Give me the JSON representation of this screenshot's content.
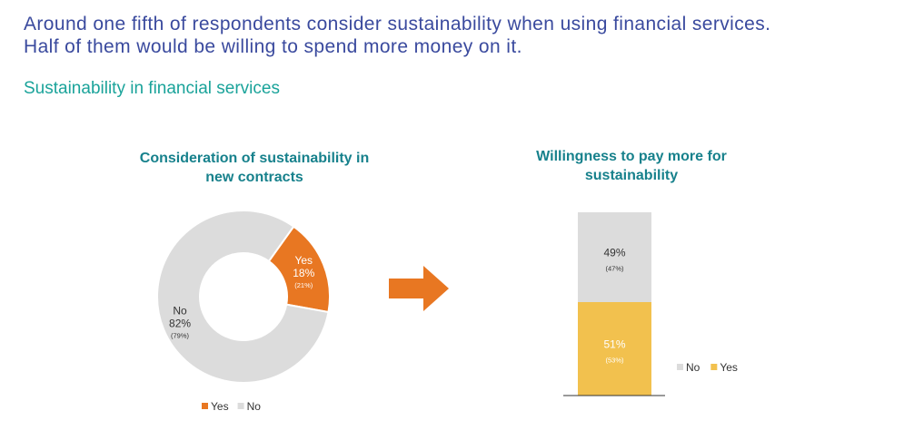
{
  "headline": {
    "line1": "Around one fifth of respondents consider sustainability when using financial services.",
    "line2": "Half of them would be willing to spend more money on it."
  },
  "subtitle": "Sustainability in financial services",
  "colors": {
    "headline": "#3a4a9e",
    "subtitle": "#1aa39a",
    "chart_title": "#17818c",
    "yes_orange": "#e87722",
    "yes_yellow": "#f2c14e",
    "no_gray": "#dcdcdc",
    "arrow": "#e87722"
  },
  "chart_data": [
    {
      "type": "pie",
      "title_line1": "Consideration of sustainability in",
      "title_line2": "new contracts",
      "slices": [
        {
          "label": "Yes",
          "value": 18,
          "value_text": "18%",
          "prior": "(21%)",
          "color": "#e87722",
          "text_color": "#ffffff"
        },
        {
          "label": "No",
          "value": 82,
          "value_text": "82%",
          "prior": "(79%)",
          "color": "#dcdcdc",
          "text_color": "#333333"
        }
      ],
      "legend": [
        {
          "label": "Yes",
          "color": "#e87722"
        },
        {
          "label": "No",
          "color": "#dcdcdc"
        }
      ],
      "legend_position": "bottom"
    },
    {
      "type": "bar",
      "stacked": true,
      "title_line1": "Willingness to pay more for",
      "title_line2": "sustainability",
      "series": [
        {
          "name": "Yes",
          "value": 51,
          "value_text": "51%",
          "prior": "(53%)",
          "color": "#f2c14e",
          "text_color": "#ffffff"
        },
        {
          "name": "No",
          "value": 49,
          "value_text": "49%",
          "prior": "(47%)",
          "color": "#dcdcdc",
          "text_color": "#333333"
        }
      ],
      "legend": [
        {
          "label": "No",
          "color": "#dcdcdc"
        },
        {
          "label": "Yes",
          "color": "#f2c14e"
        }
      ],
      "legend_position": "right"
    }
  ]
}
